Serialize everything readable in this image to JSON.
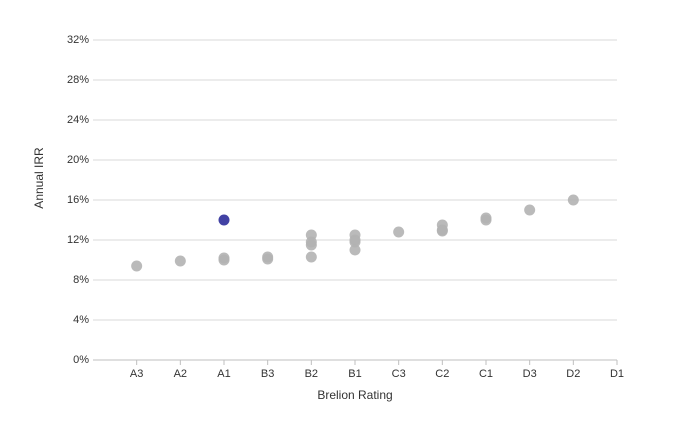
{
  "chart_data": {
    "type": "scatter",
    "x_label": "Brelion Rating",
    "y_label": "Annual IRR",
    "categories": [
      "A3",
      "A2",
      "A1",
      "B3",
      "B2",
      "B1",
      "C3",
      "C2",
      "C1",
      "D3",
      "D2",
      "D1"
    ],
    "series": [
      {
        "color": "#b3b3b3",
        "x": [
          "A3",
          "A2",
          "A1",
          "A1",
          "B3",
          "B3",
          "B2",
          "B2",
          "B2",
          "B2",
          "B1",
          "B1",
          "B1",
          "B1",
          "C3",
          "C2",
          "C2",
          "C2",
          "C1",
          "C1",
          "D3",
          "D2"
        ],
        "values": [
          9.4,
          9.9,
          10.0,
          10.2,
          10.1,
          10.3,
          12.5,
          11.8,
          11.5,
          10.3,
          12.5,
          12.0,
          11.8,
          11.0,
          12.8,
          13.5,
          13.0,
          12.9,
          14.2,
          14.0,
          15.0,
          16.0
        ]
      },
      {
        "color": "#2e2e9a",
        "x": [
          "A1"
        ],
        "values": [
          14.0
        ]
      }
    ],
    "ylim": [
      0,
      32
    ],
    "yticks": [
      {
        "value": 0,
        "label": "0%"
      },
      {
        "value": 4,
        "label": "4%"
      },
      {
        "value": 8,
        "label": "8%"
      },
      {
        "value": 12,
        "label": "12%"
      },
      {
        "value": 16,
        "label": "16%"
      },
      {
        "value": 20,
        "label": "20%"
      },
      {
        "value": 24,
        "label": "24%"
      },
      {
        "value": 28,
        "label": "28%"
      },
      {
        "value": 32,
        "label": "32%"
      }
    ],
    "grid": true
  }
}
